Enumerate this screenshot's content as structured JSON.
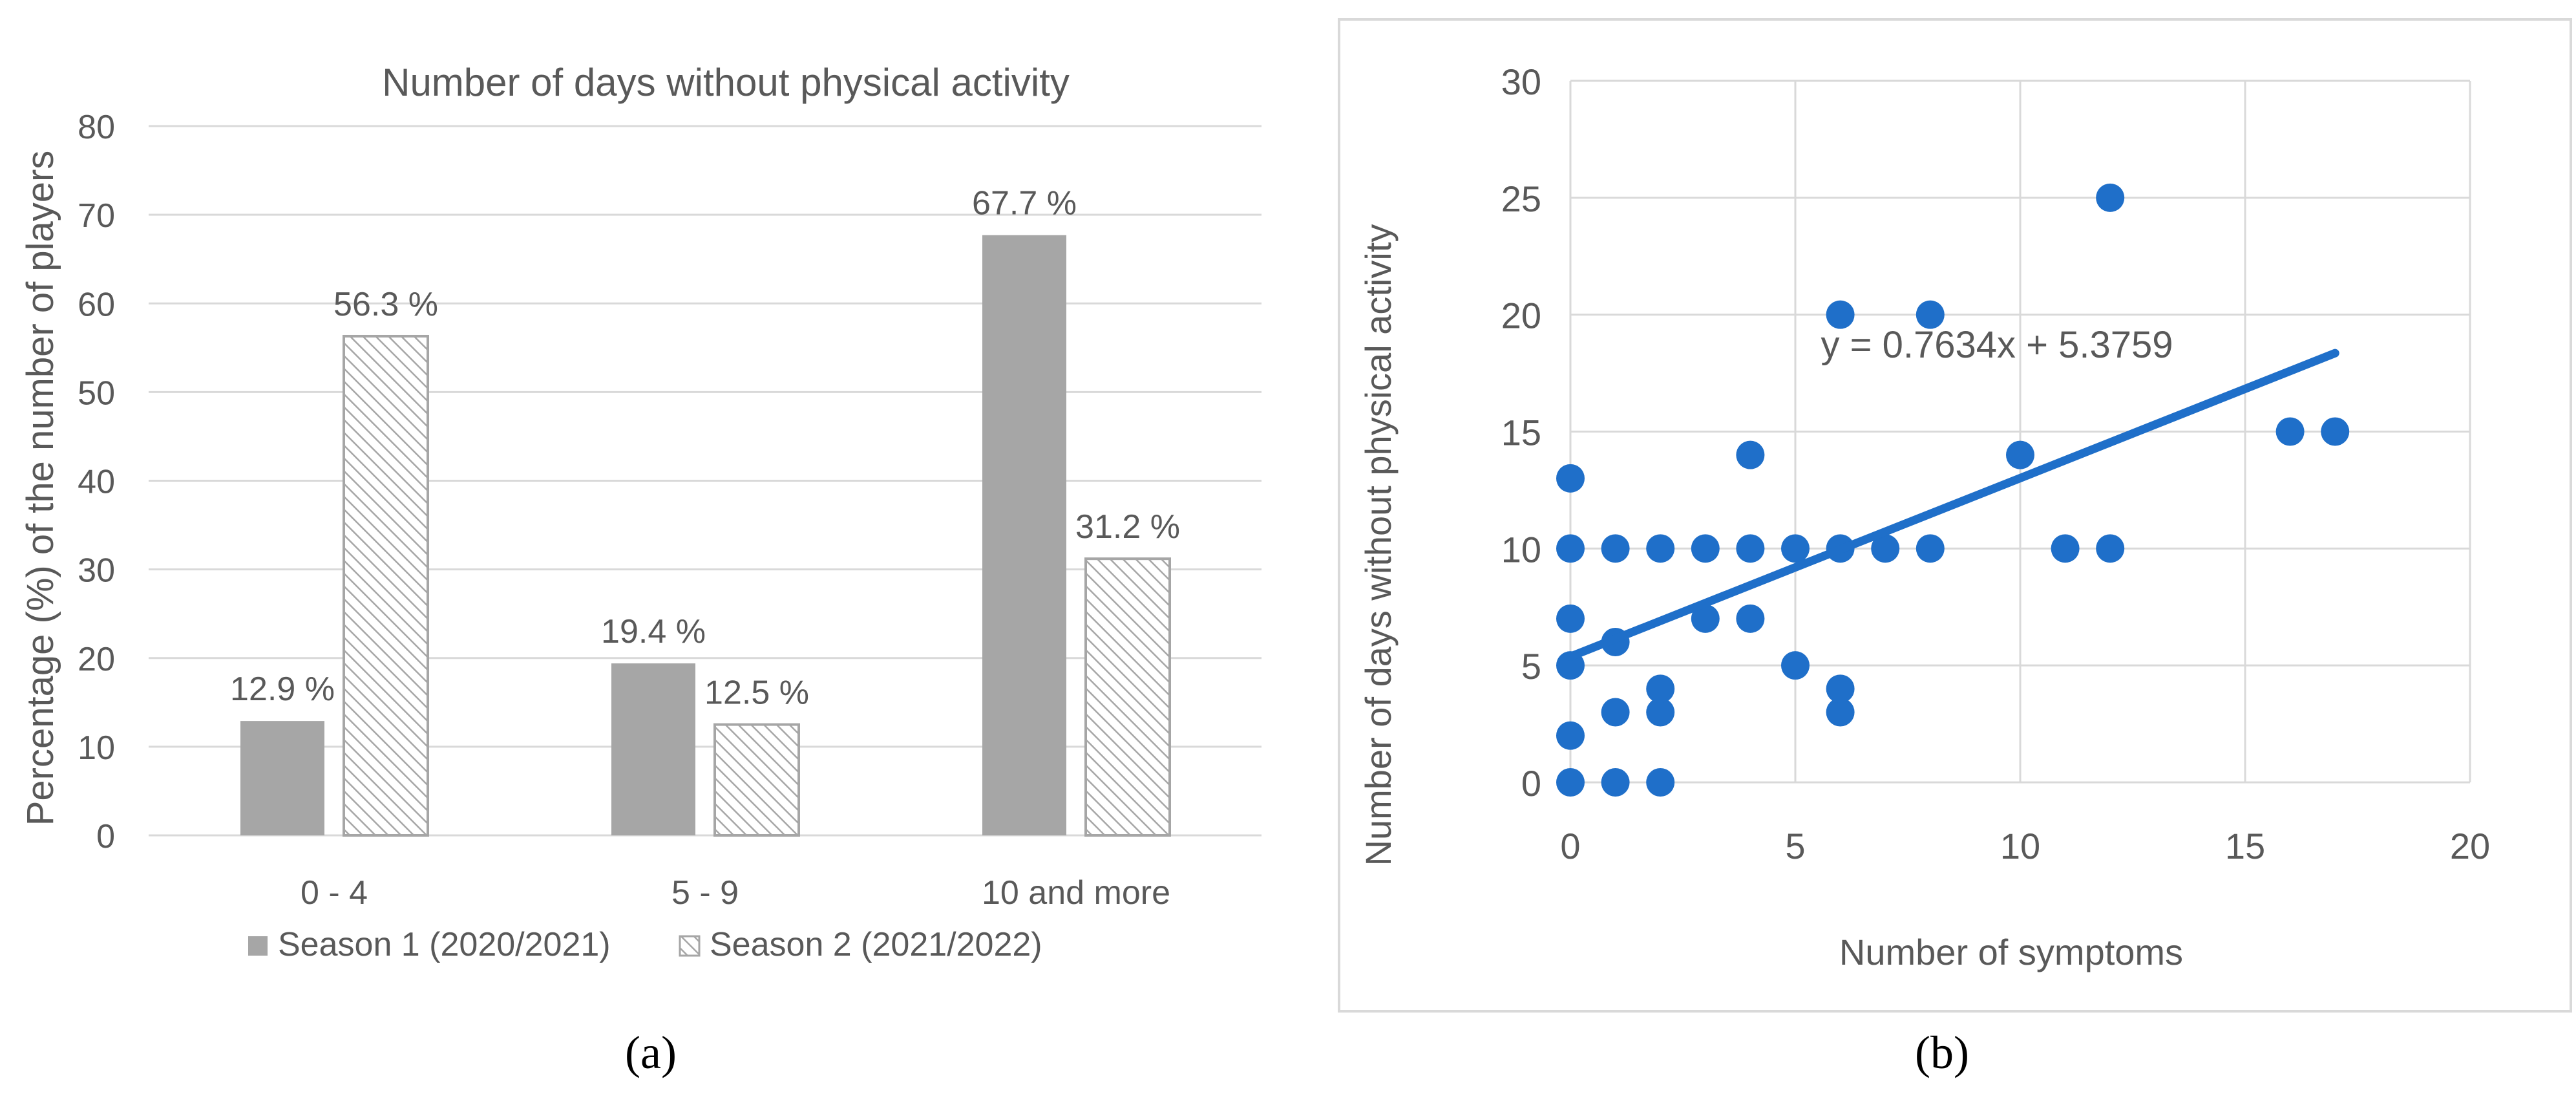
{
  "figure": {
    "label_a": "(a)",
    "label_b": "(b)"
  },
  "chart_data": [
    {
      "type": "bar",
      "title": "Number of days without physical activity",
      "xlabel": "",
      "ylabel": "Percentage (%) of the number of players",
      "categories": [
        "0 - 4",
        "5 - 9",
        "10 and more"
      ],
      "ylim": [
        0,
        80
      ],
      "yticks": [
        0,
        10,
        20,
        30,
        40,
        50,
        60,
        70,
        80
      ],
      "grid": true,
      "legend_position": "bottom",
      "series": [
        {
          "name": "Season 1 (2020/2021)",
          "values": [
            12.9,
            19.4,
            67.7
          ],
          "labels": [
            "12.9 %",
            "19.4 %",
            "67.7 %"
          ],
          "color": "#a6a6a6",
          "pattern": "solid"
        },
        {
          "name": "Season 2 (2021/2022)",
          "values": [
            56.3,
            12.5,
            31.2
          ],
          "labels": [
            "56.3 %",
            "12.5 %",
            "31.2 %"
          ],
          "color": "#a6a6a6",
          "pattern": "hatched"
        }
      ]
    },
    {
      "type": "scatter",
      "title": "",
      "xlabel": "Number of symptoms",
      "ylabel": "Number of days without physical activity",
      "xlim": [
        0,
        20
      ],
      "ylim": [
        0,
        30
      ],
      "xticks": [
        0,
        5,
        10,
        15,
        20
      ],
      "yticks": [
        0,
        5,
        10,
        15,
        20,
        25,
        30
      ],
      "grid": true,
      "point_color": "#1f6fc9",
      "points": [
        [
          0,
          0
        ],
        [
          0,
          2
        ],
        [
          0,
          5
        ],
        [
          0,
          7
        ],
        [
          0,
          10
        ],
        [
          0,
          13
        ],
        [
          1,
          0
        ],
        [
          1,
          3
        ],
        [
          1,
          6
        ],
        [
          1,
          10
        ],
        [
          2,
          0
        ],
        [
          2,
          3
        ],
        [
          2,
          4
        ],
        [
          2,
          10
        ],
        [
          3,
          7
        ],
        [
          3,
          10
        ],
        [
          4,
          7
        ],
        [
          4,
          10
        ],
        [
          4,
          14
        ],
        [
          5,
          5
        ],
        [
          5,
          10
        ],
        [
          6,
          3
        ],
        [
          6,
          4
        ],
        [
          6,
          10
        ],
        [
          6,
          20
        ],
        [
          7,
          10
        ],
        [
          8,
          10
        ],
        [
          8,
          20
        ],
        [
          10,
          14
        ],
        [
          11,
          10
        ],
        [
          12,
          10
        ],
        [
          12,
          25
        ],
        [
          16,
          15
        ],
        [
          17,
          15
        ]
      ],
      "trendline": {
        "slope": 0.7634,
        "intercept": 5.3759,
        "x_range": [
          0,
          17
        ],
        "equation": "y = 0.7634x + 5.3759",
        "color": "#1f6fc9"
      }
    }
  ]
}
